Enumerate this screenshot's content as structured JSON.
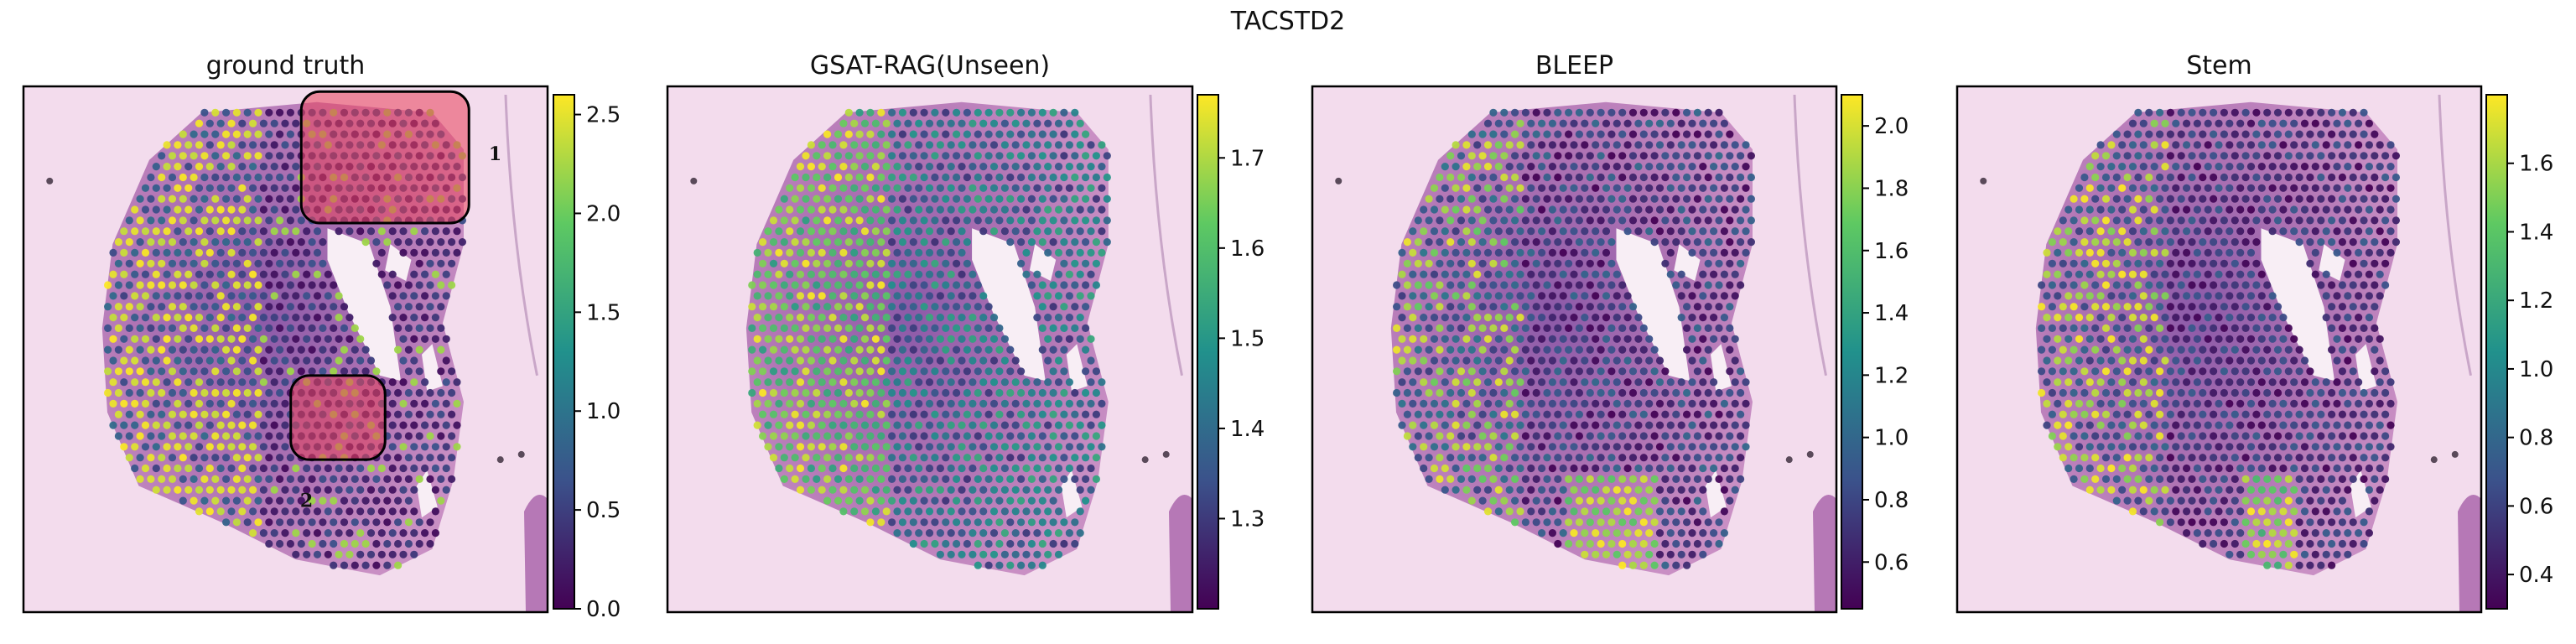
{
  "figure": {
    "suptitle": "TACSTD2"
  },
  "colors": {
    "tissue_light": "#f3dced",
    "tissue_mid": "#b678b6",
    "tissue_dark": "#7a4a96",
    "highlight_fill": "#e8415a",
    "viridis": [
      "#440154",
      "#3b528b",
      "#21918c",
      "#5ec962",
      "#fde725"
    ]
  },
  "chart_data": [
    {
      "type": "heatmap",
      "title": "ground truth",
      "colorbar": {
        "min": 0.0,
        "max": 2.6,
        "ticks": [
          0.0,
          0.5,
          1.0,
          1.5,
          2.0,
          2.5
        ],
        "labels": [
          "0.0",
          "0.5",
          "1.0",
          "1.5",
          "2.0",
          "2.5"
        ],
        "colormap": "viridis"
      },
      "annotations": [
        {
          "label": "1",
          "region": "upper-right"
        },
        {
          "label": "2",
          "region": "lower-left"
        }
      ]
    },
    {
      "type": "heatmap",
      "title": "GSAT-RAG(Unseen)",
      "colorbar": {
        "min": 1.2,
        "max": 1.77,
        "ticks": [
          1.3,
          1.4,
          1.5,
          1.6,
          1.7
        ],
        "labels": [
          "1.3",
          "1.4",
          "1.5",
          "1.6",
          "1.7"
        ],
        "colormap": "viridis"
      },
      "annotations": []
    },
    {
      "type": "heatmap",
      "title": "BLEEP",
      "colorbar": {
        "min": 0.45,
        "max": 2.1,
        "ticks": [
          0.6,
          0.8,
          1.0,
          1.2,
          1.4,
          1.6,
          1.8,
          2.0
        ],
        "labels": [
          "0.6",
          "0.8",
          "1.0",
          "1.2",
          "1.4",
          "1.6",
          "1.8",
          "2.0"
        ],
        "colormap": "viridis"
      },
      "annotations": []
    },
    {
      "type": "heatmap",
      "title": "Stem",
      "colorbar": {
        "min": 0.3,
        "max": 1.8,
        "ticks": [
          0.4,
          0.6,
          0.8,
          1.0,
          1.2,
          1.4,
          1.6
        ],
        "labels": [
          "0.4",
          "0.6",
          "0.8",
          "1.0",
          "1.2",
          "1.4",
          "1.6"
        ],
        "colormap": "viridis"
      },
      "annotations": []
    }
  ]
}
